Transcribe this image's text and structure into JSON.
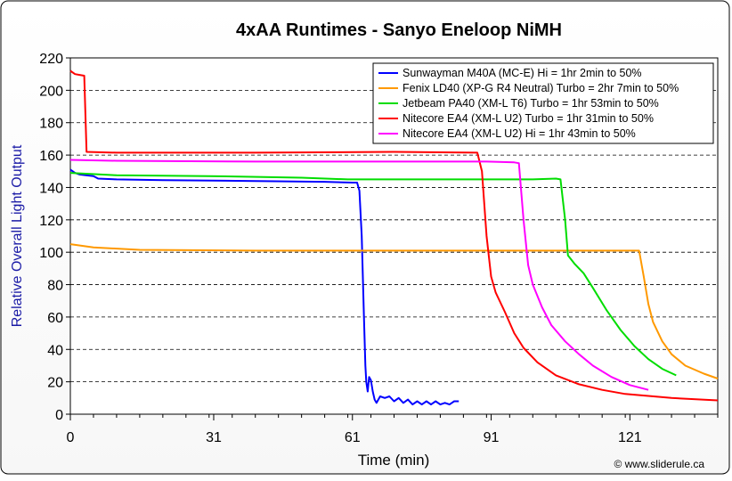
{
  "chart_data": {
    "type": "line",
    "title": "4xAA Runtimes - Sanyo Eneloop NiMH",
    "xlabel": "Time (min)",
    "ylabel": "Relative Overall Light Output",
    "credit": "© www.sliderule.ca",
    "xlim": [
      0,
      140
    ],
    "ylim": [
      0,
      220
    ],
    "x_ticks": [
      0,
      31,
      61,
      91,
      121
    ],
    "y_ticks": [
      0,
      20,
      40,
      60,
      80,
      100,
      120,
      140,
      160,
      180,
      200,
      220
    ],
    "x_minor_step": 5,
    "grid": "horizontal-dashed",
    "legend_position": "top-right",
    "series": [
      {
        "name": "Sunwayman M40A (MC-E) Hi = 1hr 2min to 50%",
        "color": "#0000ff",
        "points": [
          [
            0,
            151
          ],
          [
            1,
            149
          ],
          [
            2,
            148
          ],
          [
            5,
            147
          ],
          [
            6,
            145.5
          ],
          [
            10,
            145
          ],
          [
            20,
            144.5
          ],
          [
            40,
            144
          ],
          [
            55,
            143.5
          ],
          [
            61,
            143
          ],
          [
            62,
            143
          ],
          [
            62.5,
            138
          ],
          [
            63,
            110
          ],
          [
            63.5,
            60
          ],
          [
            63.8,
            30
          ],
          [
            64,
            20
          ],
          [
            64.3,
            14
          ],
          [
            64.6,
            23
          ],
          [
            65,
            21
          ],
          [
            65.4,
            14
          ],
          [
            65.8,
            9
          ],
          [
            66.2,
            7
          ],
          [
            67,
            11
          ],
          [
            68,
            10
          ],
          [
            69,
            11
          ],
          [
            70,
            8
          ],
          [
            71,
            10
          ],
          [
            72,
            7
          ],
          [
            73,
            9
          ],
          [
            74,
            6
          ],
          [
            75,
            8
          ],
          [
            76,
            6
          ],
          [
            77,
            8
          ],
          [
            78,
            6
          ],
          [
            79,
            8
          ],
          [
            80,
            6
          ],
          [
            81,
            7
          ],
          [
            82,
            6
          ],
          [
            83,
            8
          ],
          [
            84,
            8
          ]
        ]
      },
      {
        "name": "Fenix LD40 (XP-G R4 Neutral) Turbo = 2hr 7min to 50%",
        "color": "#ff9900",
        "points": [
          [
            0,
            105
          ],
          [
            5,
            103
          ],
          [
            15,
            101.5
          ],
          [
            40,
            101
          ],
          [
            80,
            101
          ],
          [
            110,
            101
          ],
          [
            122,
            101
          ],
          [
            123,
            101
          ],
          [
            124,
            85
          ],
          [
            125,
            68
          ],
          [
            126,
            57
          ],
          [
            128,
            45
          ],
          [
            130,
            37
          ],
          [
            133,
            30
          ],
          [
            137,
            25
          ],
          [
            140,
            22
          ]
        ]
      },
      {
        "name": "Jetbeam PA40 (XM-L T6) Turbo = 1hr 53min to 50%",
        "color": "#00dd00",
        "points": [
          [
            0,
            149
          ],
          [
            10,
            147.5
          ],
          [
            30,
            147
          ],
          [
            50,
            146
          ],
          [
            60,
            145
          ],
          [
            80,
            145
          ],
          [
            100,
            145
          ],
          [
            105,
            145.5
          ],
          [
            106,
            145
          ],
          [
            107,
            120
          ],
          [
            107.6,
            98
          ],
          [
            109,
            93
          ],
          [
            111,
            87
          ],
          [
            113,
            78
          ],
          [
            116,
            64
          ],
          [
            119,
            52
          ],
          [
            122,
            42
          ],
          [
            125,
            34
          ],
          [
            128,
            28
          ],
          [
            131,
            24
          ]
        ]
      },
      {
        "name": "Nitecore EA4 (XM-L U2) Turbo = 1hr 31min to 50%",
        "color": "#ff0000",
        "points": [
          [
            0,
            212
          ],
          [
            1,
            210
          ],
          [
            2,
            209.5
          ],
          [
            3,
            209
          ],
          [
            3.5,
            162
          ],
          [
            10,
            161.5
          ],
          [
            40,
            161.5
          ],
          [
            70,
            162
          ],
          [
            88,
            161.5
          ],
          [
            89,
            150
          ],
          [
            90,
            110
          ],
          [
            91,
            85
          ],
          [
            92,
            75
          ],
          [
            94,
            63
          ],
          [
            96,
            50
          ],
          [
            98,
            41
          ],
          [
            101,
            32
          ],
          [
            105,
            24
          ],
          [
            110,
            18.5
          ],
          [
            115,
            15
          ],
          [
            120,
            12.5
          ],
          [
            130,
            10
          ],
          [
            140,
            8.5
          ]
        ]
      },
      {
        "name": "Nitecore EA4 (XM-L U2) Hi = 1hr 43min to 50%",
        "color": "#ff00ff",
        "points": [
          [
            0,
            157
          ],
          [
            10,
            156.5
          ],
          [
            40,
            156
          ],
          [
            70,
            156
          ],
          [
            90,
            156
          ],
          [
            96,
            155.5
          ],
          [
            97,
            155
          ],
          [
            98,
            120
          ],
          [
            99,
            92
          ],
          [
            100,
            80
          ],
          [
            102,
            66
          ],
          [
            104,
            55
          ],
          [
            107,
            45
          ],
          [
            110,
            37
          ],
          [
            113,
            30
          ],
          [
            117,
            23
          ],
          [
            121,
            18
          ],
          [
            125,
            15
          ]
        ]
      }
    ]
  }
}
